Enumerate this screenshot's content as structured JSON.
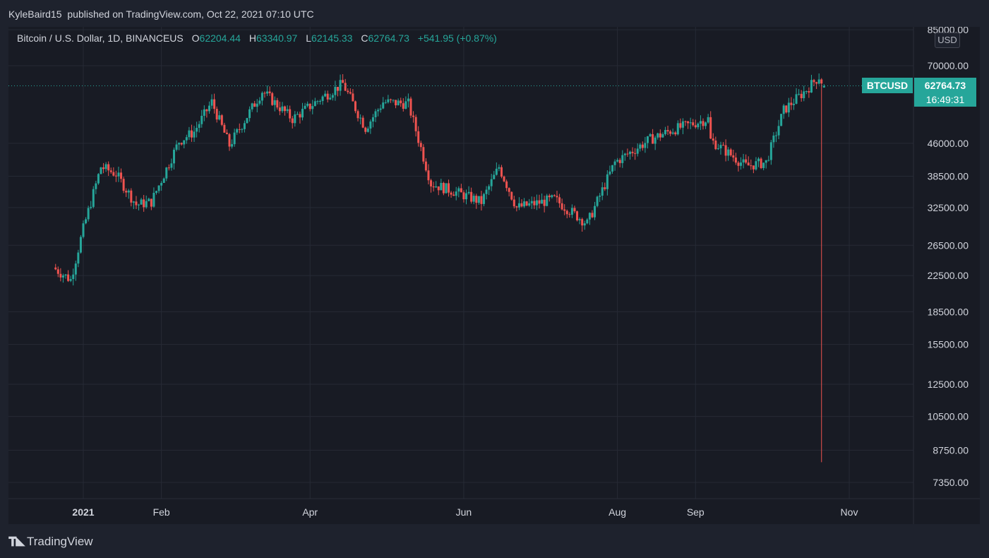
{
  "header": {
    "author": "KyleBaird15",
    "published_text": "published on TradingView.com, Oct 22, 2021 07:10 UTC"
  },
  "legend": {
    "symbol_desc": "Bitcoin / U.S. Dollar, 1D, BINANCEUS",
    "o_label": "O",
    "o_value": "62204.44",
    "h_label": "H",
    "h_value": "63340.97",
    "l_label": "L",
    "l_value": "62145.33",
    "c_label": "C",
    "c_value": "62764.73",
    "change": "+541.95 (+0.87%)"
  },
  "currency_button": "USD",
  "price_badge": {
    "symbol": "BTCUSD",
    "price": "62764.73",
    "countdown": "16:49:31"
  },
  "footer": {
    "brand": "TradingView"
  },
  "colors": {
    "up": "#26a69a",
    "down": "#ef5350",
    "background": "#181b24",
    "grid": "#262a35",
    "axis_text": "#d1d4dc"
  },
  "chart_data": {
    "type": "candlestick",
    "title": "Bitcoin / U.S. Dollar, 1D, BINANCEUS",
    "ylabel": "USD",
    "y_scale": "log",
    "y_ticks": [
      85000,
      70000,
      46000,
      38500,
      32500,
      26500,
      22500,
      18500,
      15500,
      12500,
      10500,
      8750,
      7350
    ],
    "y_tick_labels": [
      "85000.00",
      "70000.00",
      "46000.00",
      "38500.00",
      "32500.00",
      "26500.00",
      "22500.00",
      "18500.00",
      "15500.00",
      "12500.00",
      "10500.00",
      "8750.00",
      "7350.00"
    ],
    "x_ticks": [
      "2021-01-01",
      "2021-02-01",
      "2021-04-01",
      "2021-06-01",
      "2021-08-01",
      "2021-09-01",
      "2021-11-01"
    ],
    "x_tick_labels": [
      "2021",
      "Feb",
      "Apr",
      "Jun",
      "Aug",
      "Sep",
      "Nov"
    ],
    "last_price": 62764.73,
    "anomaly": {
      "date": "2021-10-21",
      "low": 8200
    },
    "key_points": [
      {
        "date": "2020-12-20",
        "close": 23500
      },
      {
        "date": "2020-12-27",
        "close": 22000
      },
      {
        "date": "2021-01-01",
        "close": 29000
      },
      {
        "date": "2021-01-08",
        "close": 40500
      },
      {
        "date": "2021-01-14",
        "close": 39000
      },
      {
        "date": "2021-01-22",
        "close": 33000
      },
      {
        "date": "2021-01-28",
        "close": 33500
      },
      {
        "date": "2021-02-08",
        "close": 46500
      },
      {
        "date": "2021-02-14",
        "close": 49000
      },
      {
        "date": "2021-02-21",
        "close": 57500
      },
      {
        "date": "2021-02-28",
        "close": 45500
      },
      {
        "date": "2021-03-13",
        "close": 61000
      },
      {
        "date": "2021-03-25",
        "close": 52500
      },
      {
        "date": "2021-04-05",
        "close": 58500
      },
      {
        "date": "2021-04-14",
        "close": 63500
      },
      {
        "date": "2021-04-23",
        "close": 50000
      },
      {
        "date": "2021-04-30",
        "close": 57500
      },
      {
        "date": "2021-05-10",
        "close": 57000
      },
      {
        "date": "2021-05-19",
        "close": 37000
      },
      {
        "date": "2021-05-28",
        "close": 35500
      },
      {
        "date": "2021-06-08",
        "close": 33500
      },
      {
        "date": "2021-06-15",
        "close": 40500
      },
      {
        "date": "2021-06-22",
        "close": 32500
      },
      {
        "date": "2021-07-07",
        "close": 34000
      },
      {
        "date": "2021-07-20",
        "close": 29800
      },
      {
        "date": "2021-07-31",
        "close": 41500
      },
      {
        "date": "2021-08-14",
        "close": 47000
      },
      {
        "date": "2021-08-23",
        "close": 49500
      },
      {
        "date": "2021-09-06",
        "close": 52500
      },
      {
        "date": "2021-09-07",
        "close": 46800
      },
      {
        "date": "2021-09-21",
        "close": 40700
      },
      {
        "date": "2021-09-29",
        "close": 41500
      },
      {
        "date": "2021-10-06",
        "close": 55000
      },
      {
        "date": "2021-10-15",
        "close": 61500
      },
      {
        "date": "2021-10-20",
        "close": 66000
      },
      {
        "date": "2021-10-22",
        "close": 62764.73
      }
    ]
  }
}
